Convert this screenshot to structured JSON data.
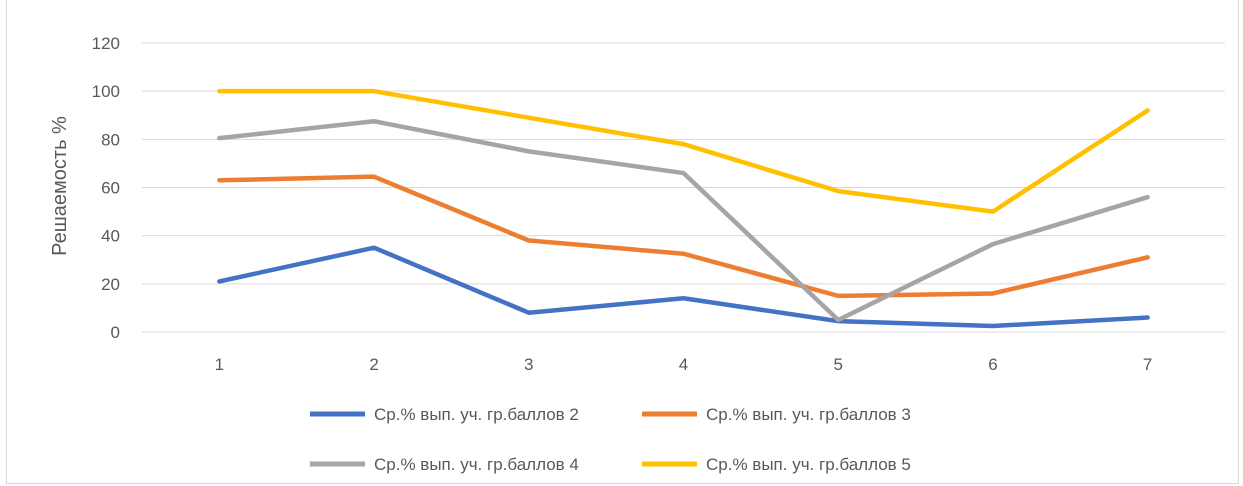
{
  "page": {
    "title_fragment": "…        …          …      …             …     …   …         …   (…   …      …)"
  },
  "chart_data": {
    "type": "line",
    "title": "",
    "xlabel": "",
    "ylabel": "Решаемость %",
    "categories": [
      "1",
      "2",
      "3",
      "4",
      "5",
      "6",
      "7"
    ],
    "ylim": [
      0,
      120
    ],
    "yticks": [
      0,
      20,
      40,
      60,
      80,
      100,
      120
    ],
    "grid": true,
    "legend_position": "bottom",
    "series": [
      {
        "name": "Ср.% вып. уч. гр.баллов 2",
        "color": "#4472C4",
        "values": [
          21,
          35,
          8,
          14,
          4.5,
          2.5,
          6
        ]
      },
      {
        "name": "Ср.% вып. уч. гр.баллов 3",
        "color": "#ED7D31",
        "values": [
          63,
          64.5,
          38,
          32.5,
          15,
          16,
          31
        ]
      },
      {
        "name": "Ср.% вып. уч. гр.баллов 4",
        "color": "#A5A5A5",
        "values": [
          80.5,
          87.5,
          75,
          66,
          5,
          36.5,
          56
        ]
      },
      {
        "name": "Ср.% вып. уч. гр.баллов 5",
        "color": "#FFC000",
        "values": [
          100,
          100,
          89,
          78,
          58.5,
          50,
          92
        ]
      }
    ]
  }
}
